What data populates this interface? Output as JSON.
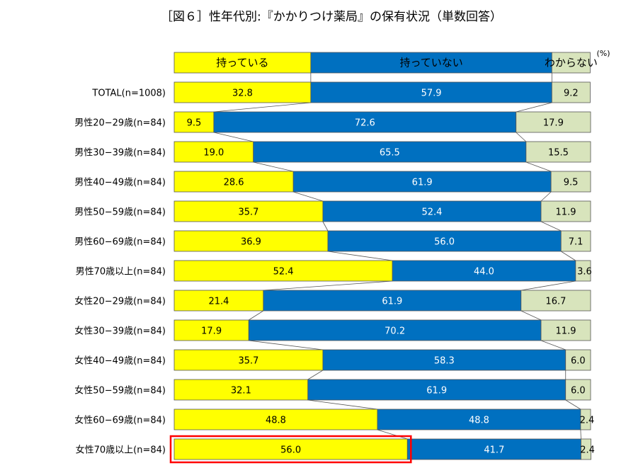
{
  "chart_data": {
    "type": "bar",
    "orientation": "horizontal",
    "stacked": "100%",
    "title": "［図６］性年代別:『かかりつけ薬局』の保有状況（単数回答）",
    "unit": "(%)",
    "categories": [
      "TOTAL(n=1008)",
      "男性20−29歳(n=84)",
      "男性30−39歳(n=84)",
      "男性40−49歳(n=84)",
      "男性50−59歳(n=84)",
      "男性60−69歳(n=84)",
      "男性70歳以上(n=84)",
      "女性20−29歳(n=84)",
      "女性30−39歳(n=84)",
      "女性40−49歳(n=84)",
      "女性50−59歳(n=84)",
      "女性60−69歳(n=84)",
      "女性70歳以上(n=84)"
    ],
    "series": [
      {
        "name": "持っている",
        "color": "#FFFF00",
        "values": [
          32.8,
          9.5,
          19.0,
          28.6,
          35.7,
          36.9,
          52.4,
          21.4,
          17.9,
          35.7,
          32.1,
          48.8,
          56.0
        ]
      },
      {
        "name": "持っていない",
        "color": "#0070C0",
        "values": [
          57.9,
          72.6,
          65.5,
          61.9,
          52.4,
          56.0,
          44.0,
          61.9,
          70.2,
          58.3,
          61.9,
          48.8,
          41.7
        ]
      },
      {
        "name": "わからない",
        "color": "#D8E4BC",
        "values": [
          9.2,
          17.9,
          15.5,
          9.5,
          11.9,
          7.1,
          3.6,
          16.7,
          11.9,
          6.0,
          6.0,
          2.4,
          2.4
        ]
      }
    ],
    "xlim": [
      0,
      100
    ],
    "legend_position": "top",
    "series_connector_lines": true,
    "highlight": {
      "category_index": 12,
      "series_index": 0,
      "color": "#FF0000"
    },
    "grid": false
  }
}
